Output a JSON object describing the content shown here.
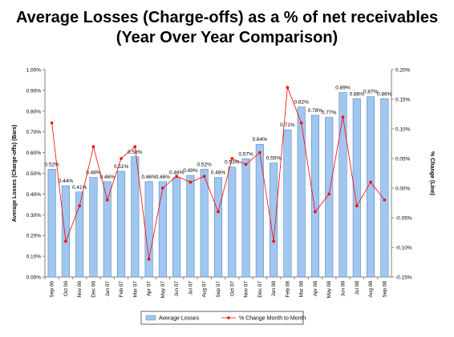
{
  "chart_data": {
    "type": "bar+line",
    "title": "Average Losses (Charge-offs) as a % of net receivables",
    "subtitle": "(Year Over Year Comparison)",
    "categories": [
      "Sep 06",
      "Oct 06",
      "Nov 06",
      "Dec 06",
      "Jan 07",
      "Feb 07",
      "Mar 07",
      "Apr 07",
      "May 07",
      "Jun 07",
      "Jul 07",
      "Aug 07",
      "Sep 07",
      "Oct 07",
      "Nov 07",
      "Dec 07",
      "Jan 08",
      "Feb 08",
      "Mar 08",
      "Apr 08",
      "May 08",
      "Jun 08",
      "Jul 08",
      "Aug 08",
      "Sep 08"
    ],
    "ylabel_left": "Average Losses (Charge-offs) (Bars)",
    "ylabel_right": "% Change (Line)",
    "left_ticks": [
      "0.00%",
      "0.10%",
      "0.20%",
      "0.30%",
      "0.40%",
      "0.50%",
      "0.60%",
      "0.70%",
      "0.80%",
      "0.90%",
      "1.00%"
    ],
    "right_ticks": [
      "-0.15%",
      "-0.10%",
      "-0.05%",
      "0.00%",
      "0.05%",
      "0.10%",
      "0.15%",
      "0.20%"
    ],
    "ylim_left": [
      0,
      1.0
    ],
    "ylim_right": [
      -0.15,
      0.2
    ],
    "series": [
      {
        "name": "Average Losses",
        "kind": "bar",
        "color": "#9fc7f0",
        "values": [
          0.52,
          0.44,
          0.41,
          0.48,
          0.46,
          0.51,
          0.58,
          0.46,
          0.46,
          0.48,
          0.49,
          0.52,
          0.48,
          0.53,
          0.57,
          0.64,
          0.55,
          0.71,
          0.82,
          0.78,
          0.77,
          0.89,
          0.86,
          0.87,
          0.86
        ],
        "labels": [
          "0.52%",
          "0.44%",
          "0.41%",
          "0.48%",
          "0.46%",
          "0.51%",
          "0.58%",
          "0.46%",
          "0.46%",
          "0.48%",
          "0.49%",
          "0.52%",
          "0.48%",
          "0.53%",
          "0.57%",
          "0.64%",
          "0.55%",
          "0.71%",
          "0.82%",
          "0.78%",
          "0.77%",
          "0.89%",
          "0.86%",
          "0.87%",
          "0.86%"
        ]
      },
      {
        "name": "% Change Month to Month",
        "kind": "line",
        "color": "#ff0000",
        "values": [
          0.11,
          -0.09,
          -0.03,
          0.07,
          -0.02,
          0.05,
          0.07,
          -0.12,
          0.0,
          0.02,
          0.01,
          0.02,
          -0.04,
          0.05,
          0.04,
          0.06,
          -0.09,
          0.17,
          0.11,
          -0.04,
          -0.01,
          0.12,
          -0.03,
          0.01,
          -0.02
        ]
      }
    ],
    "grid": false,
    "legend": "bottom"
  }
}
